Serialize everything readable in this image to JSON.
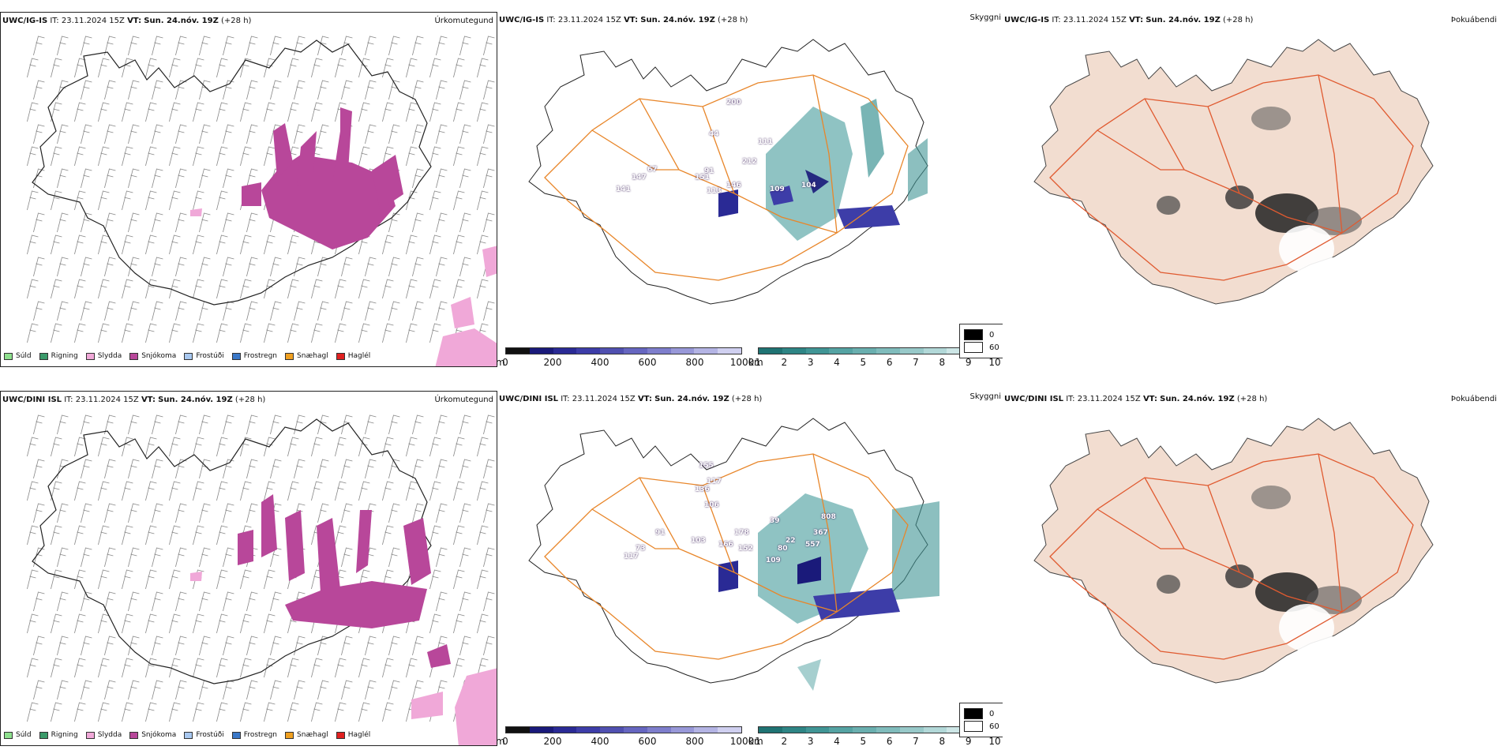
{
  "rows": [
    {
      "model": "UWC/IG-IS",
      "it_label": "IT:",
      "it_value": "23.11.2024 15Z",
      "vt_label": "VT:",
      "vt_value": "Sun. 24.nóv. 19Z",
      "lead": "(+28 h)",
      "vis_labels": [
        "200",
        "44",
        "111",
        "212",
        "91",
        "151",
        "113",
        "146",
        "109",
        "104",
        "67",
        "147",
        "141"
      ]
    },
    {
      "model": "UWC/DINI ISL",
      "it_label": "IT:",
      "it_value": "23.11.2024 15Z",
      "vt_label": "VT:",
      "vt_value": "Sun. 24.nóv. 19Z",
      "lead": "(+28 h)",
      "vis_labels": [
        "155",
        "117",
        "136",
        "106",
        "39",
        "178",
        "22",
        "808",
        "367",
        "557",
        "103",
        "166",
        "152",
        "80",
        "109",
        "91",
        "73",
        "117"
      ]
    }
  ],
  "panel_titles": {
    "precip": "Úrkomutegund",
    "vis": "Skyggni",
    "fog": "Þokuábendi"
  },
  "precip_legend": [
    {
      "label": "Súld",
      "color": "#8ee08e"
    },
    {
      "label": "Rigning",
      "color": "#3a9a6a"
    },
    {
      "label": "Slydda",
      "color": "#f0a8d8"
    },
    {
      "label": "Snjókoma",
      "color": "#b8479a"
    },
    {
      "label": "Frostúði",
      "color": "#a8c8f0"
    },
    {
      "label": "Frostregn",
      "color": "#3a78c8"
    },
    {
      "label": "Snæhagl",
      "color": "#f0a020"
    },
    {
      "label": "Haglél",
      "color": "#e02020"
    }
  ],
  "cloudbase_bar": {
    "unit": "m",
    "ticks": [
      "0",
      "200",
      "400",
      "600",
      "800",
      "1000"
    ],
    "colors": [
      "#111111",
      "#1a1a7a",
      "#2a2a95",
      "#3d3da8",
      "#5050b0",
      "#6666c0",
      "#7e7ecc",
      "#9898d8",
      "#b4b4e4",
      "#d0d0f0"
    ]
  },
  "visibility_bar": {
    "unit": "km",
    "ticks": [
      "1",
      "2",
      "3",
      "4",
      "5",
      "6",
      "7",
      "8",
      "9",
      "10"
    ],
    "colors": [
      "#1f7373",
      "#2e8585",
      "#409595",
      "#55a3a3",
      "#6aafaf",
      "#80bcbc",
      "#98c9c9",
      "#b2d8d8",
      "#cde6e6",
      "#e6f3f3"
    ]
  },
  "fog_legend": [
    {
      "label": "0",
      "color": "#000000"
    },
    {
      "label": "60",
      "color": "#ffffff"
    }
  ],
  "colors": {
    "snow": "#b8479a",
    "sleet": "#f0a8d8",
    "roads": "#e8862a",
    "fog_land": "#f2ddd0",
    "fog_roads": "#e05a30",
    "rivers": "#7f8fe8"
  }
}
